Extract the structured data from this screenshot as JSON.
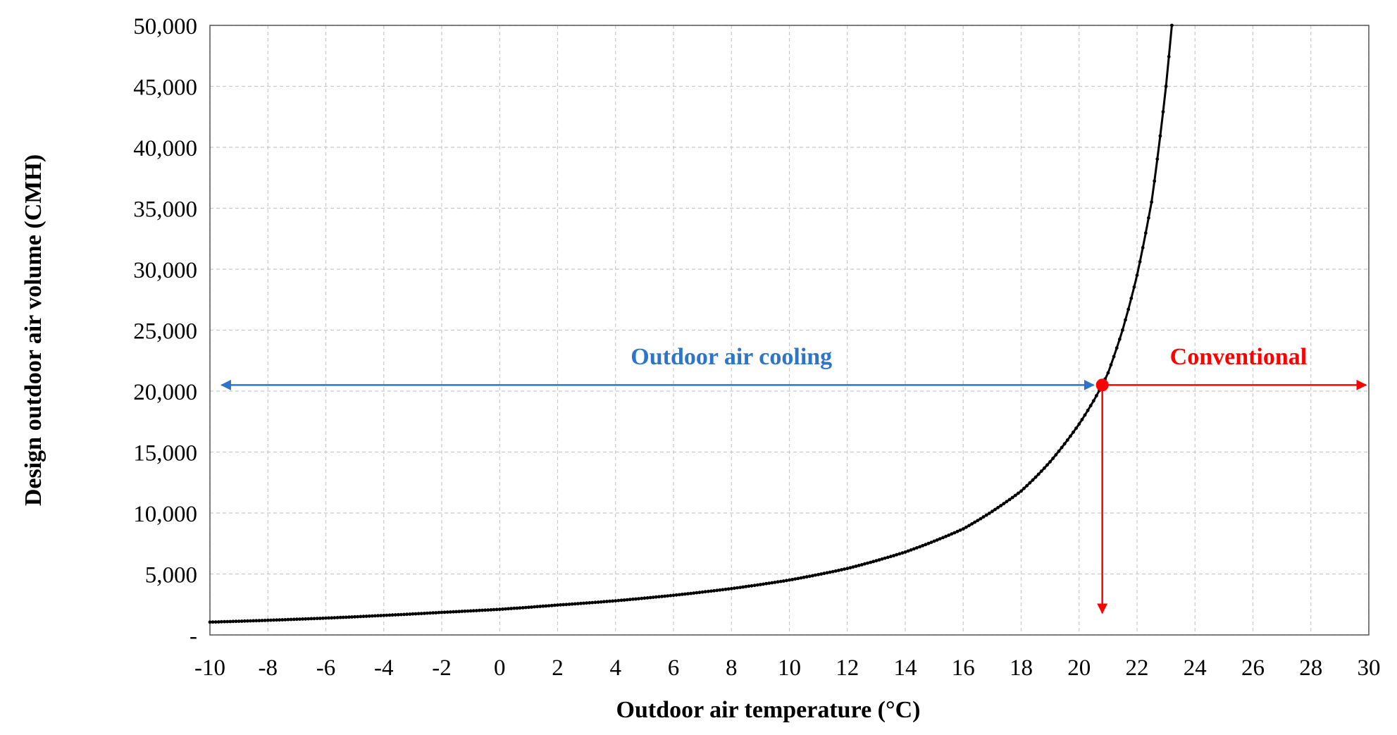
{
  "chart_data": {
    "type": "line",
    "xlabel": "Outdoor air temperature (°C)",
    "ylabel": "Design outdoor air volume (CMH)",
    "xlim": [
      -10,
      30
    ],
    "ylim": [
      0,
      50000
    ],
    "x_ticks": [
      -10,
      -8,
      -6,
      -4,
      -2,
      0,
      2,
      4,
      6,
      8,
      10,
      12,
      14,
      16,
      18,
      20,
      22,
      24,
      26,
      28,
      30
    ],
    "x_tick_labels": [
      "-10",
      "-8",
      "-6",
      "-4",
      "-2",
      "0",
      "2",
      "4",
      "6",
      "8",
      "10",
      "12",
      "14",
      "16",
      "18",
      "20",
      "22",
      "24",
      "26",
      "28",
      "30"
    ],
    "y_ticks": [
      0,
      5000,
      10000,
      15000,
      20000,
      25000,
      30000,
      35000,
      40000,
      45000,
      50000
    ],
    "y_tick_labels": [
      "-",
      "5,000",
      "10,000",
      "15,000",
      "20,000",
      "25,000",
      "30,000",
      "35,000",
      "40,000",
      "45,000",
      "50,000"
    ],
    "grid": true,
    "series": [
      {
        "color": "#000000",
        "x": [
          -10,
          -8,
          -6,
          -4,
          -2,
          0,
          2,
          4,
          6,
          8,
          10,
          12,
          14,
          16,
          18,
          19,
          20,
          20.5,
          20.8,
          21,
          21.5,
          22,
          22.5,
          23,
          23.2
        ],
        "y": [
          1050,
          1200,
          1380,
          1600,
          1850,
          2100,
          2450,
          2800,
          3250,
          3800,
          4500,
          5450,
          6800,
          8700,
          11800,
          14200,
          17300,
          19200,
          20500,
          21500,
          25000,
          29500,
          35500,
          45000,
          50000
        ]
      }
    ],
    "annotations": [
      {
        "text": "Outdoor air cooling",
        "color": "#2e75c9",
        "arrow_x": [
          -9.6,
          20.5
        ],
        "arrow_y": 20500,
        "label_x": 8,
        "label_y": 22200
      },
      {
        "text": "Conventional",
        "color": "#ff0000",
        "arrow_x": [
          20.8,
          29.9
        ],
        "arrow_y": 20500,
        "label_x": 25.5,
        "label_y": 22200
      },
      {
        "text": "",
        "color": "#ff0000",
        "point_x": 20.8,
        "point_y": 20500,
        "drop_to_y": 1800
      }
    ]
  }
}
